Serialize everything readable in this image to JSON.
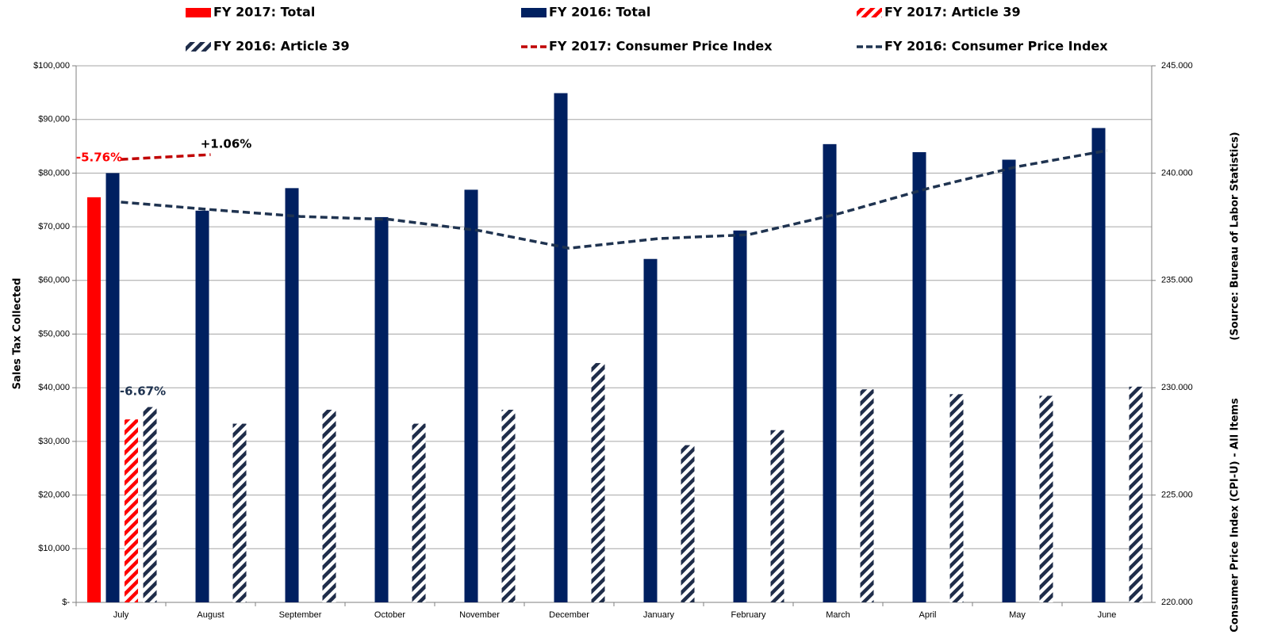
{
  "chart_data": {
    "type": "bar",
    "categories": [
      "July",
      "August",
      "September",
      "October",
      "November",
      "December",
      "January",
      "February",
      "March",
      "April",
      "May",
      "June"
    ],
    "series": [
      {
        "name": "FY 2017: Total",
        "color": "#ff0000",
        "style": "solid",
        "values": [
          75500,
          null,
          null,
          null,
          null,
          null,
          null,
          null,
          null,
          null,
          null,
          null
        ]
      },
      {
        "name": "FY 2016: Total",
        "color": "#002060",
        "style": "solid",
        "values": [
          80000,
          73000,
          77200,
          71800,
          76900,
          94900,
          64000,
          69300,
          85400,
          83900,
          82500,
          88400
        ]
      },
      {
        "name": "FY 2017: Article 39",
        "color": "#ff0000",
        "style": "hatch",
        "values": [
          34100,
          null,
          null,
          null,
          null,
          null,
          null,
          null,
          null,
          null,
          null,
          null
        ]
      },
      {
        "name": "FY 2016: Article 39",
        "color": "#1f2d4a",
        "style": "hatch",
        "values": [
          36400,
          33300,
          35900,
          33300,
          35900,
          44600,
          29300,
          32100,
          39700,
          38800,
          38500,
          40200
        ]
      },
      {
        "name": "FY 2017: Consumer Price Index",
        "color": "#c00000",
        "style": "dashed",
        "axis": "y2",
        "values": [
          240.64,
          240.86,
          null,
          null,
          null,
          null,
          null,
          null,
          null,
          null,
          null,
          null
        ]
      },
      {
        "name": "FY 2016: Consumer Price Index",
        "color": "#1f3350",
        "style": "dashed",
        "axis": "y2",
        "values": [
          238.65,
          238.3,
          237.98,
          237.84,
          237.32,
          236.5,
          236.95,
          237.13,
          238.1,
          239.28,
          240.3,
          241.05
        ]
      }
    ],
    "y_label": "Sales Tax Collected",
    "y2_label": "Consumer Price Index (CPI-U) - All Items",
    "y2_source": "(Source: Bureau of Labor Statistics)",
    "ylim": [
      0,
      100000
    ],
    "yticks": [
      {
        "value": 0,
        "label": "$-"
      },
      {
        "value": 10000,
        "label": "$10,000"
      },
      {
        "value": 20000,
        "label": "$20,000"
      },
      {
        "value": 30000,
        "label": "$30,000"
      },
      {
        "value": 40000,
        "label": "$40,000"
      },
      {
        "value": 50000,
        "label": "$50,000"
      },
      {
        "value": 60000,
        "label": "$60,000"
      },
      {
        "value": 70000,
        "label": "$70,000"
      },
      {
        "value": 80000,
        "label": "$80,000"
      },
      {
        "value": 90000,
        "label": "$90,000"
      },
      {
        "value": 100000,
        "label": "$100,000"
      }
    ],
    "y2lim": [
      220,
      245
    ],
    "y2ticks": [
      {
        "value": 220,
        "label": "220.000"
      },
      {
        "value": 225,
        "label": "225.000"
      },
      {
        "value": 230,
        "label": "230.000"
      },
      {
        "value": 235,
        "label": "235.000"
      },
      {
        "value": 240,
        "label": "240.000"
      },
      {
        "value": 245,
        "label": "245.000"
      }
    ],
    "grid": true,
    "annotations": [
      {
        "text": "-5.76%",
        "color": "#ff0000"
      },
      {
        "text": "+1.06%",
        "color": "#000000"
      },
      {
        "text": "-6.67%",
        "color": "#1f3350"
      }
    ]
  }
}
